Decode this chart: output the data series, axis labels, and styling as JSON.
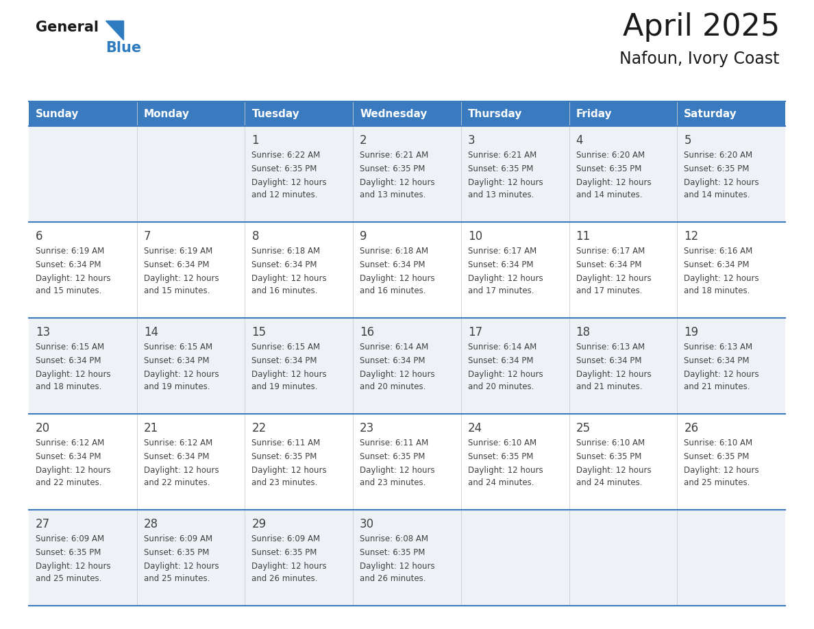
{
  "title": "April 2025",
  "subtitle": "Nafoun, Ivory Coast",
  "days_of_week": [
    "Sunday",
    "Monday",
    "Tuesday",
    "Wednesday",
    "Thursday",
    "Friday",
    "Saturday"
  ],
  "header_bg": "#3a7bbf",
  "header_text": "#ffffff",
  "row_bg_odd": "#eef2f7",
  "row_bg_even": "#ffffff",
  "border_color": "#3a7bbf",
  "text_color": "#404040",
  "title_color": "#1a1a1a",
  "logo_general_color": "#1a1a1a",
  "logo_blue_color": "#2e7bbf",
  "logo_triangle_color": "#2e7bbf",
  "cal_data": [
    [
      {
        "day": "",
        "sunrise": "",
        "sunset": "",
        "daylight": ""
      },
      {
        "day": "",
        "sunrise": "",
        "sunset": "",
        "daylight": ""
      },
      {
        "day": "1",
        "sunrise": "6:22 AM",
        "sunset": "6:35 PM",
        "daylight": "12 hours and 12 minutes."
      },
      {
        "day": "2",
        "sunrise": "6:21 AM",
        "sunset": "6:35 PM",
        "daylight": "12 hours and 13 minutes."
      },
      {
        "day": "3",
        "sunrise": "6:21 AM",
        "sunset": "6:35 PM",
        "daylight": "12 hours and 13 minutes."
      },
      {
        "day": "4",
        "sunrise": "6:20 AM",
        "sunset": "6:35 PM",
        "daylight": "12 hours and 14 minutes."
      },
      {
        "day": "5",
        "sunrise": "6:20 AM",
        "sunset": "6:35 PM",
        "daylight": "12 hours and 14 minutes."
      }
    ],
    [
      {
        "day": "6",
        "sunrise": "6:19 AM",
        "sunset": "6:34 PM",
        "daylight": "12 hours and 15 minutes."
      },
      {
        "day": "7",
        "sunrise": "6:19 AM",
        "sunset": "6:34 PM",
        "daylight": "12 hours and 15 minutes."
      },
      {
        "day": "8",
        "sunrise": "6:18 AM",
        "sunset": "6:34 PM",
        "daylight": "12 hours and 16 minutes."
      },
      {
        "day": "9",
        "sunrise": "6:18 AM",
        "sunset": "6:34 PM",
        "daylight": "12 hours and 16 minutes."
      },
      {
        "day": "10",
        "sunrise": "6:17 AM",
        "sunset": "6:34 PM",
        "daylight": "12 hours and 17 minutes."
      },
      {
        "day": "11",
        "sunrise": "6:17 AM",
        "sunset": "6:34 PM",
        "daylight": "12 hours and 17 minutes."
      },
      {
        "day": "12",
        "sunrise": "6:16 AM",
        "sunset": "6:34 PM",
        "daylight": "12 hours and 18 minutes."
      }
    ],
    [
      {
        "day": "13",
        "sunrise": "6:15 AM",
        "sunset": "6:34 PM",
        "daylight": "12 hours and 18 minutes."
      },
      {
        "day": "14",
        "sunrise": "6:15 AM",
        "sunset": "6:34 PM",
        "daylight": "12 hours and 19 minutes."
      },
      {
        "day": "15",
        "sunrise": "6:15 AM",
        "sunset": "6:34 PM",
        "daylight": "12 hours and 19 minutes."
      },
      {
        "day": "16",
        "sunrise": "6:14 AM",
        "sunset": "6:34 PM",
        "daylight": "12 hours and 20 minutes."
      },
      {
        "day": "17",
        "sunrise": "6:14 AM",
        "sunset": "6:34 PM",
        "daylight": "12 hours and 20 minutes."
      },
      {
        "day": "18",
        "sunrise": "6:13 AM",
        "sunset": "6:34 PM",
        "daylight": "12 hours and 21 minutes."
      },
      {
        "day": "19",
        "sunrise": "6:13 AM",
        "sunset": "6:34 PM",
        "daylight": "12 hours and 21 minutes."
      }
    ],
    [
      {
        "day": "20",
        "sunrise": "6:12 AM",
        "sunset": "6:34 PM",
        "daylight": "12 hours and 22 minutes."
      },
      {
        "day": "21",
        "sunrise": "6:12 AM",
        "sunset": "6:34 PM",
        "daylight": "12 hours and 22 minutes."
      },
      {
        "day": "22",
        "sunrise": "6:11 AM",
        "sunset": "6:35 PM",
        "daylight": "12 hours and 23 minutes."
      },
      {
        "day": "23",
        "sunrise": "6:11 AM",
        "sunset": "6:35 PM",
        "daylight": "12 hours and 23 minutes."
      },
      {
        "day": "24",
        "sunrise": "6:10 AM",
        "sunset": "6:35 PM",
        "daylight": "12 hours and 24 minutes."
      },
      {
        "day": "25",
        "sunrise": "6:10 AM",
        "sunset": "6:35 PM",
        "daylight": "12 hours and 24 minutes."
      },
      {
        "day": "26",
        "sunrise": "6:10 AM",
        "sunset": "6:35 PM",
        "daylight": "12 hours and 25 minutes."
      }
    ],
    [
      {
        "day": "27",
        "sunrise": "6:09 AM",
        "sunset": "6:35 PM",
        "daylight": "12 hours and 25 minutes."
      },
      {
        "day": "28",
        "sunrise": "6:09 AM",
        "sunset": "6:35 PM",
        "daylight": "12 hours and 25 minutes."
      },
      {
        "day": "29",
        "sunrise": "6:09 AM",
        "sunset": "6:35 PM",
        "daylight": "12 hours and 26 minutes."
      },
      {
        "day": "30",
        "sunrise": "6:08 AM",
        "sunset": "6:35 PM",
        "daylight": "12 hours and 26 minutes."
      },
      {
        "day": "",
        "sunrise": "",
        "sunset": "",
        "daylight": ""
      },
      {
        "day": "",
        "sunrise": "",
        "sunset": "",
        "daylight": ""
      },
      {
        "day": "",
        "sunrise": "",
        "sunset": "",
        "daylight": ""
      }
    ]
  ]
}
